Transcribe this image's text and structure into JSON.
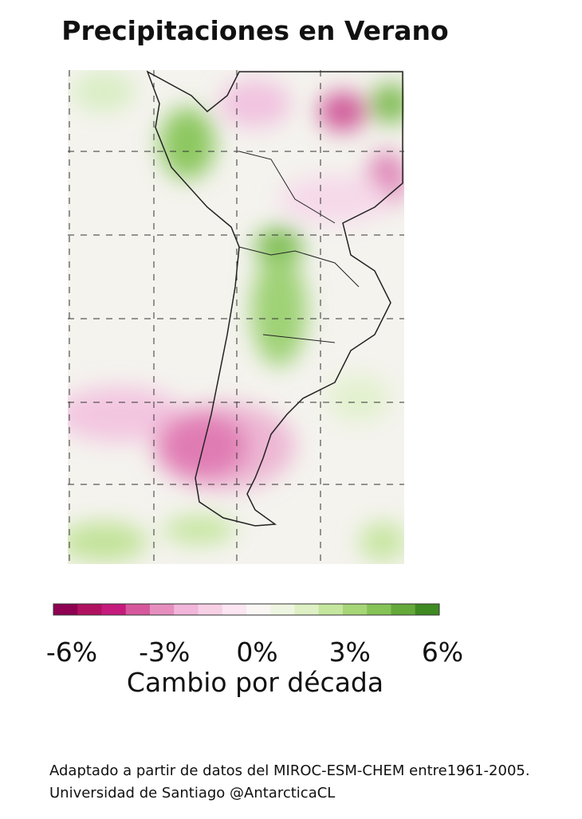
{
  "title": "Precipitaciones en Verano",
  "colorbar": {
    "colors": [
      "#8e0152",
      "#b0125f",
      "#c51b7d",
      "#d6589c",
      "#e68fbf",
      "#f1b6da",
      "#f7d0e6",
      "#fbe6f1",
      "#f9f6f4",
      "#eef6e1",
      "#def0c4",
      "#c4e69e",
      "#a6d677",
      "#85c356",
      "#64a93a",
      "#3f8a23"
    ],
    "ticks": [
      {
        "value": -6,
        "label": "-6%"
      },
      {
        "value": -3,
        "label": "-3%"
      },
      {
        "value": 0,
        "label": "0%"
      },
      {
        "value": 3,
        "label": "3%"
      },
      {
        "value": 6,
        "label": "6%"
      }
    ],
    "label": "Cambio por década"
  },
  "footnote": [
    "Adaptado a partir de datos del MIROC-ESM-CHEM entre1961-2005.",
    "Universidad de Santiago @AntarcticaCL"
  ]
}
